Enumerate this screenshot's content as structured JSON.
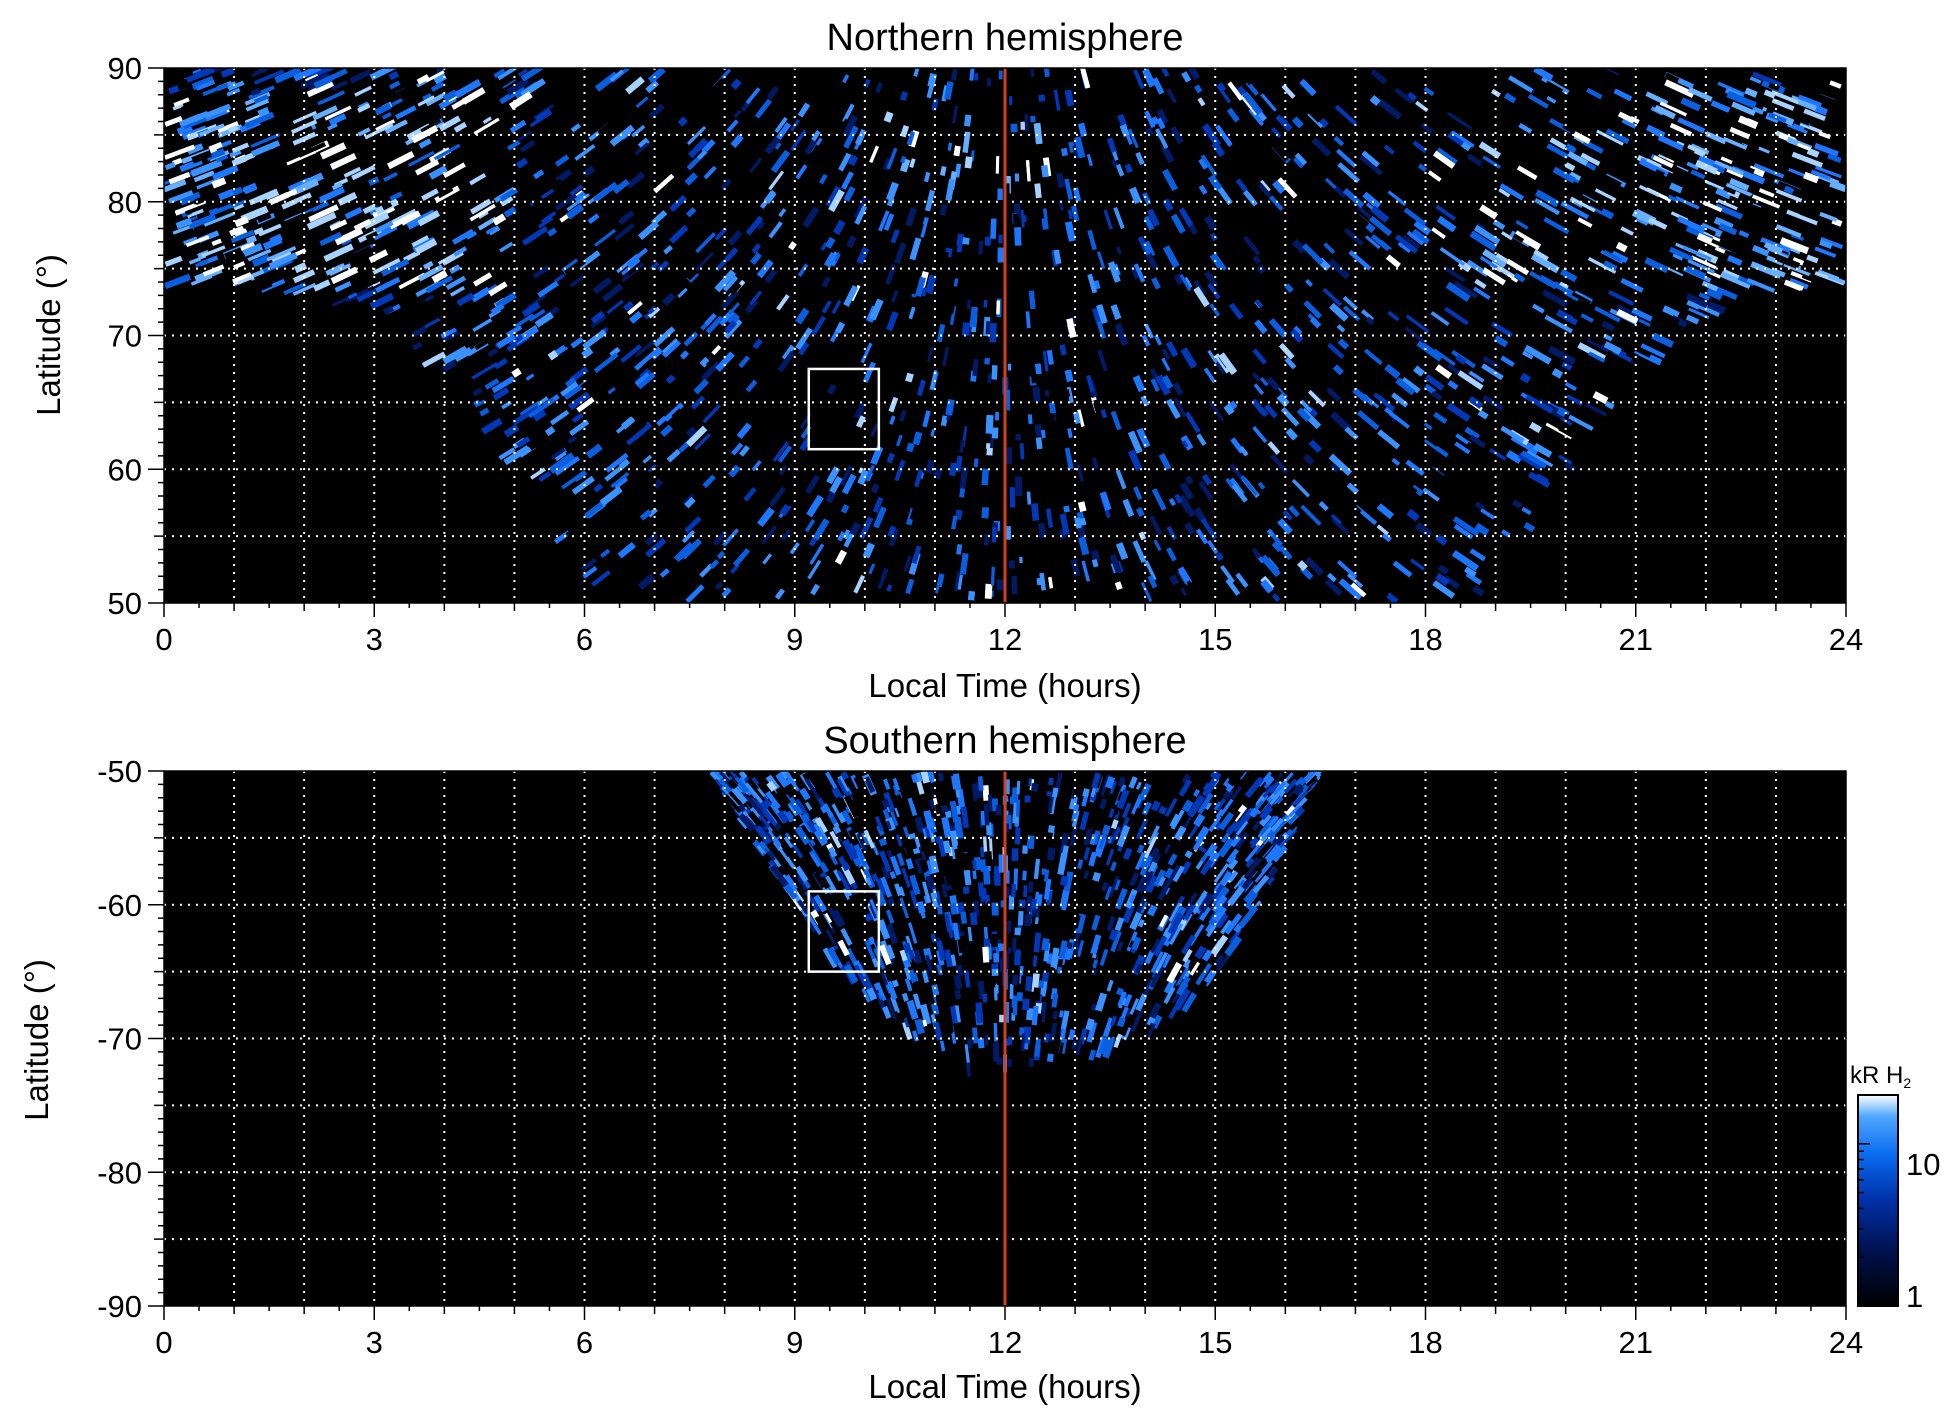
{
  "chart_data": [
    {
      "type": "heatmap",
      "title": "Northern hemisphere",
      "xlabel": "Local Time (hours)",
      "ylabel": "Latitude (°)",
      "xlim": [
        0,
        24
      ],
      "ylim": [
        50,
        90
      ],
      "x_ticks": [
        0,
        3,
        6,
        9,
        12,
        15,
        18,
        21,
        24
      ],
      "y_ticks": [
        50,
        60,
        70,
        80,
        90
      ],
      "grid": true,
      "marker_line_x": 12,
      "marker_line_color": "#d2401f",
      "highlight_box": {
        "x": [
          9.2,
          10.2
        ],
        "y": [
          61.5,
          67.5
        ]
      },
      "coverage_boundary": [
        {
          "lt": 0,
          "lat": 73.5
        },
        {
          "lt": 1,
          "lat": 73.5
        },
        {
          "lt": 2,
          "lat": 73
        },
        {
          "lt": 3,
          "lat": 71
        },
        {
          "lt": 4,
          "lat": 66
        },
        {
          "lt": 5,
          "lat": 59
        },
        {
          "lt": 6,
          "lat": 50
        },
        {
          "lt": 19,
          "lat": 50
        },
        {
          "lt": 20,
          "lat": 59
        },
        {
          "lt": 21,
          "lat": 66
        },
        {
          "lt": 22,
          "lat": 71
        },
        {
          "lt": 23,
          "lat": 73
        },
        {
          "lt": 24,
          "lat": 73.5
        }
      ],
      "bright_bands": [
        {
          "lt_range": [
            0,
            5
          ],
          "lat_range": [
            73,
            88
          ]
        },
        {
          "lt_range": [
            19,
            24
          ],
          "lat_range": [
            73,
            88
          ]
        },
        {
          "lt_range": [
            10.5,
            12.5
          ],
          "lat_range": [
            80,
            85
          ]
        }
      ]
    },
    {
      "type": "heatmap",
      "title": "Southern hemisphere",
      "xlabel": "Local Time (hours)",
      "ylabel": "Latitude (°)",
      "xlim": [
        0,
        24
      ],
      "ylim": [
        -90,
        -50
      ],
      "x_ticks": [
        0,
        3,
        6,
        9,
        12,
        15,
        18,
        21,
        24
      ],
      "y_ticks": [
        -50,
        -60,
        -70,
        -80,
        -90
      ],
      "grid": true,
      "marker_line_x": 12,
      "marker_line_color": "#d2401f",
      "highlight_box": {
        "x": [
          9.2,
          10.2
        ],
        "y": [
          -65,
          -59
        ]
      },
      "coverage_boundary": [
        {
          "lt": 7.8,
          "lat": -50
        },
        {
          "lt": 8.5,
          "lat": -56
        },
        {
          "lt": 9.5,
          "lat": -64
        },
        {
          "lt": 10.5,
          "lat": -69
        },
        {
          "lt": 11.5,
          "lat": -72
        },
        {
          "lt": 12.5,
          "lat": -72
        },
        {
          "lt": 13.5,
          "lat": -71
        },
        {
          "lt": 14.5,
          "lat": -68
        },
        {
          "lt": 15.5,
          "lat": -62
        },
        {
          "lt": 16.5,
          "lat": -50
        }
      ]
    }
  ],
  "colorbar": {
    "title": "kR H",
    "subscript": "2",
    "scale": "log",
    "range": [
      1,
      20
    ],
    "tick_labels": [
      "10",
      "1"
    ],
    "colors": [
      "#000000",
      "#00104a",
      "#0030a8",
      "#0a6cf0",
      "#52a8ff",
      "#ffffff"
    ]
  }
}
